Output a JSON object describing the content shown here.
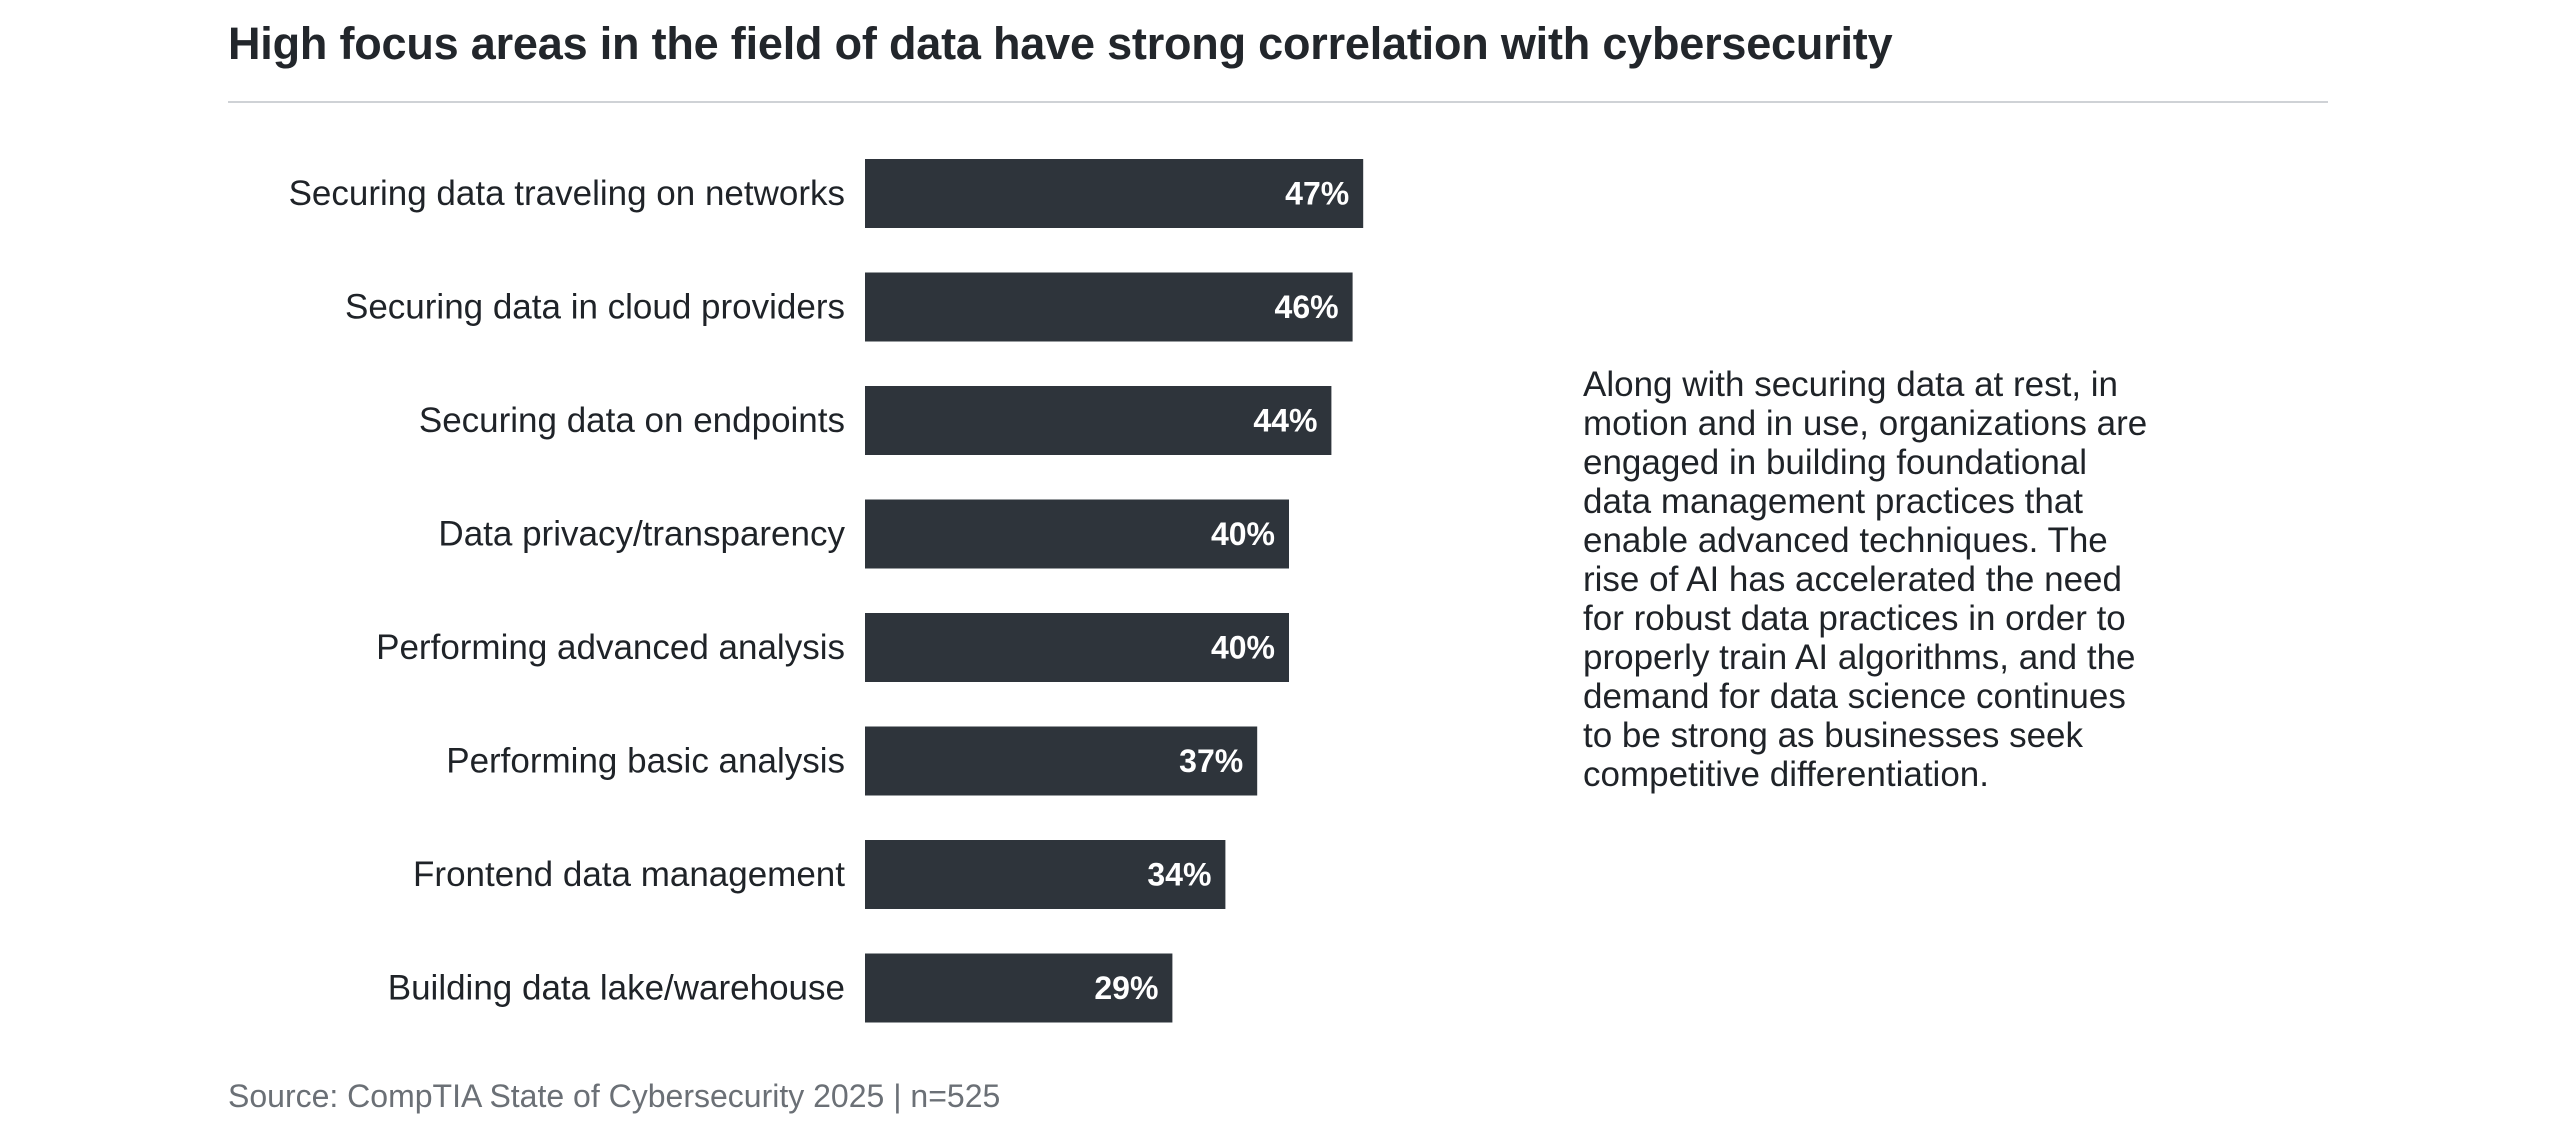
{
  "chart_data": {
    "type": "bar",
    "orientation": "horizontal",
    "title": "High focus areas in the field of data have strong correlation with cybersecurity",
    "categories": [
      "Securing data traveling on networks",
      "Securing data in cloud providers",
      "Securing data on endpoints",
      "Data privacy/transparency",
      "Performing advanced analysis",
      "Performing basic analysis",
      "Frontend data management",
      "Building data lake/warehouse"
    ],
    "values": [
      47,
      46,
      44,
      40,
      40,
      37,
      34,
      29
    ],
    "value_labels": [
      "47%",
      "46%",
      "44%",
      "40%",
      "40%",
      "37%",
      "34%",
      "29%"
    ],
    "unit": "%",
    "bar_color": "#2e343b",
    "value_label_color": "#ffffff",
    "grid": false,
    "legend": "none",
    "xlabel": "",
    "ylabel": ""
  },
  "callout": {
    "text": "Along with securing data at rest, in motion and in use, organizations are engaged in building foundational data management practices that enable advanced techniques. The rise of AI has accelerated the need for robust data practices in order to properly train AI algorithms, and the demand for data science continues to be strong as businesses seek competitive differentiation."
  },
  "source": {
    "text": "Source: CompTIA State of Cybersecurity 2025 | n=525"
  }
}
